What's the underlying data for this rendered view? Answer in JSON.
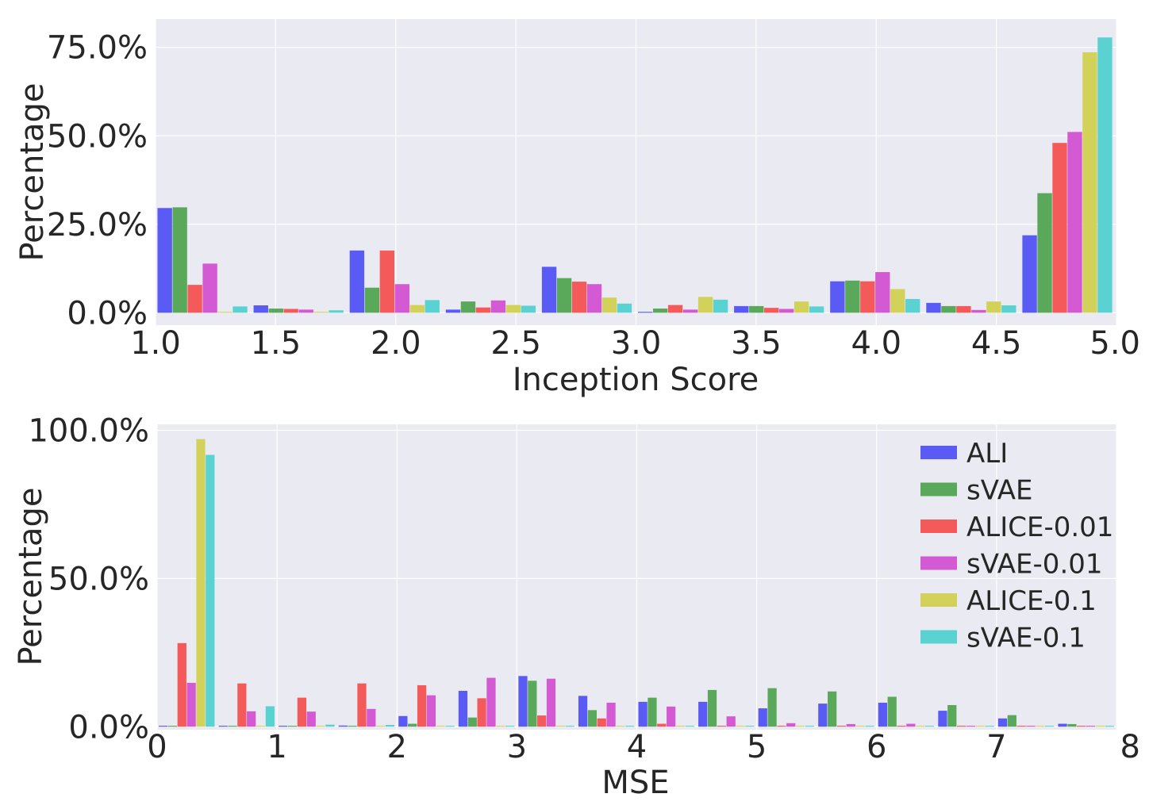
{
  "series_names": [
    "ALI",
    "sVAE",
    "ALICE-0.01",
    "sVAE-0.01",
    "ALICE-0.1",
    "sVAE-0.1"
  ],
  "series_colors": [
    "#5a5af5",
    "#5aa85a",
    "#f55a5a",
    "#d45ad4",
    "#d2d25a",
    "#5ad2d2"
  ],
  "chart_data": [
    {
      "type": "bar",
      "xlabel": "Inception Score",
      "ylabel": "Percentage",
      "xlim": [
        1.0,
        5.0
      ],
      "ylim": [
        -3.5,
        83
      ],
      "grid": true,
      "legend": "none",
      "x_ticks": [
        1.0,
        1.5,
        2.0,
        2.5,
        3.0,
        3.5,
        4.0,
        4.5,
        5.0
      ],
      "x_tick_labels": [
        "1.0",
        "1.5",
        "2.0",
        "2.5",
        "3.0",
        "3.5",
        "4.0",
        "4.5",
        "5.0"
      ],
      "y_ticks": [
        0,
        25,
        50,
        75
      ],
      "y_tick_labels": [
        "0.0%",
        "25.0%",
        "50.0%",
        "75.0%"
      ],
      "bin_edges": [
        1.0,
        1.4,
        1.8,
        2.2,
        2.6,
        3.0,
        3.4,
        3.8,
        4.2,
        4.6,
        5.0
      ],
      "series": [
        {
          "name": "ALI",
          "values": [
            29.6,
            2.1,
            17.6,
            0.9,
            13.0,
            0.1,
            1.9,
            8.9,
            2.8,
            21.9
          ]
        },
        {
          "name": "sVAE",
          "values": [
            29.8,
            1.2,
            7.1,
            3.2,
            9.8,
            1.2,
            1.9,
            9.1,
            1.9,
            33.8
          ]
        },
        {
          "name": "ALICE-0.01",
          "values": [
            7.9,
            1.1,
            17.6,
            1.5,
            8.8,
            2.2,
            1.4,
            8.9,
            1.9,
            48.0
          ]
        },
        {
          "name": "sVAE-0.01",
          "values": [
            13.9,
            0.9,
            8.1,
            3.5,
            8.1,
            0.9,
            1.1,
            11.5,
            0.8,
            51.1
          ]
        },
        {
          "name": "ALICE-0.1",
          "values": [
            0.0,
            0.1,
            2.2,
            2.2,
            4.3,
            4.5,
            3.2,
            6.7,
            3.2,
            73.6
          ]
        },
        {
          "name": "sVAE-0.1",
          "values": [
            1.8,
            0.7,
            3.6,
            2.0,
            2.6,
            3.7,
            1.8,
            3.9,
            2.1,
            77.8
          ]
        }
      ]
    },
    {
      "type": "bar",
      "xlabel": "MSE",
      "ylabel": "Percentage",
      "xlim": [
        0,
        8
      ],
      "ylim": [
        -1,
        102
      ],
      "grid": true,
      "legend": "top-right",
      "x_ticks": [
        0,
        1,
        2,
        3,
        4,
        5,
        6,
        7,
        8
      ],
      "x_tick_labels": [
        "0",
        "1",
        "2",
        "3",
        "4",
        "5",
        "6",
        "7",
        "8"
      ],
      "y_ticks": [
        0,
        50,
        100
      ],
      "y_tick_labels": [
        "0.0%",
        "50.0%",
        "100.0%"
      ],
      "bin_edges": [
        0,
        0.5,
        1.0,
        1.5,
        2.0,
        2.5,
        3.0,
        3.5,
        4.0,
        4.5,
        5.0,
        5.5,
        6.0,
        6.5,
        7.0,
        7.5,
        8.0
      ],
      "series": [
        {
          "name": "ALI",
          "values": [
            0.1,
            0.1,
            0.1,
            0.4,
            3.6,
            12.1,
            17.1,
            10.4,
            8.4,
            8.4,
            6.2,
            7.8,
            8.1,
            5.4,
            2.8,
            1.0
          ]
        },
        {
          "name": "sVAE",
          "values": [
            0.0,
            0.0,
            0.0,
            0.1,
            1.0,
            3.1,
            15.5,
            5.6,
            9.8,
            12.4,
            13.0,
            11.9,
            10.1,
            7.3,
            3.9,
            0.9
          ]
        },
        {
          "name": "ALICE-0.01",
          "values": [
            28.2,
            14.6,
            9.8,
            14.6,
            14.0,
            9.6,
            3.8,
            2.8,
            1.0,
            0.1,
            0.0,
            0.0,
            0.0,
            0.0,
            0.0,
            0.0
          ]
        },
        {
          "name": "sVAE-0.01",
          "values": [
            14.8,
            5.2,
            5.1,
            6.0,
            10.6,
            16.5,
            16.2,
            8.1,
            6.8,
            3.5,
            1.2,
            0.9,
            1.0,
            0.2,
            0.0,
            0.0
          ]
        },
        {
          "name": "ALICE-0.1",
          "values": [
            97.0,
            0.0,
            0.0,
            0.0,
            0.0,
            0.0,
            0.0,
            0.0,
            0.0,
            0.0,
            0.0,
            0.0,
            0.0,
            0.0,
            0.0,
            0.0
          ]
        },
        {
          "name": "sVAE-0.1",
          "values": [
            91.7,
            6.9,
            0.7,
            0.6,
            0.0,
            0.0,
            0.0,
            0.0,
            0.0,
            0.0,
            0.0,
            0.0,
            0.0,
            0.0,
            0.0,
            0.0
          ]
        }
      ]
    }
  ]
}
